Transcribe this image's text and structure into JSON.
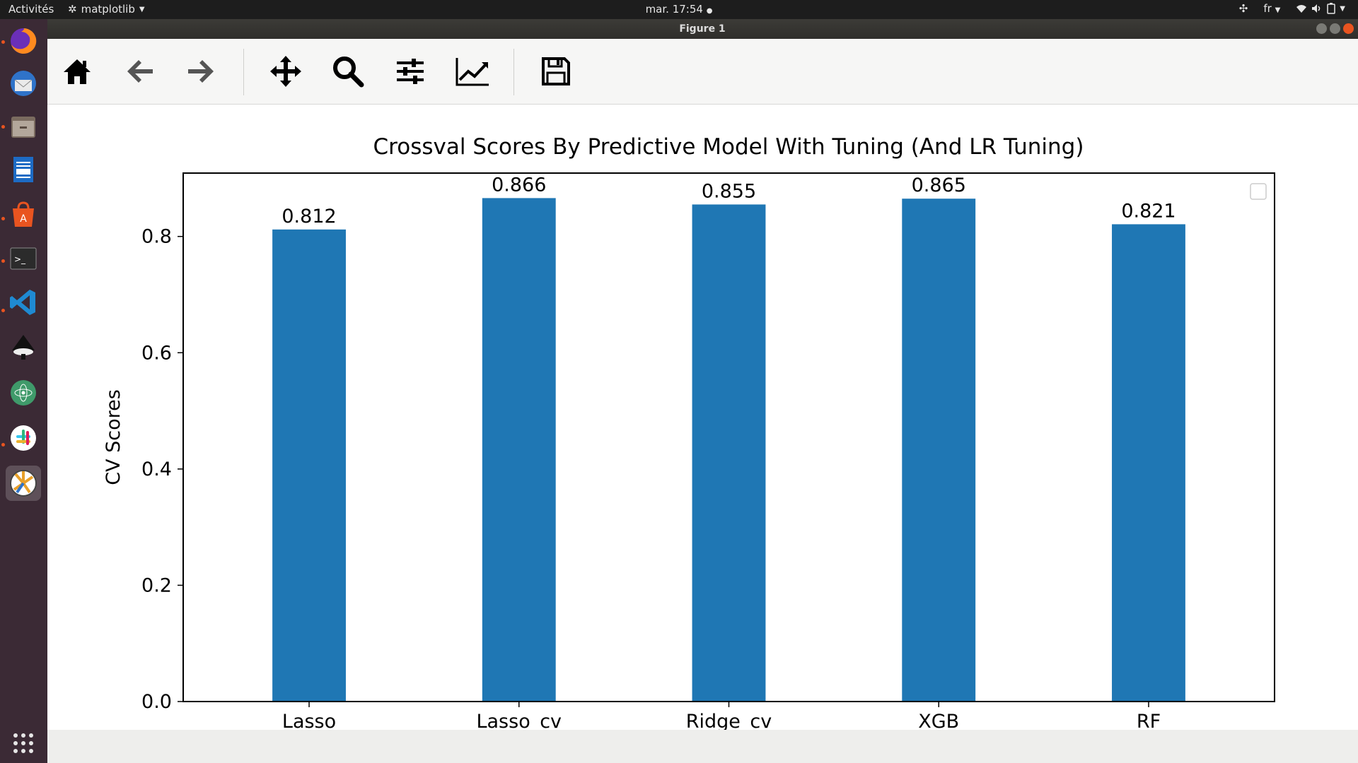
{
  "topbar": {
    "activities": "Activités",
    "app_name": "matplotlib",
    "clock": "mar. 17:54",
    "lang": "fr"
  },
  "window": {
    "title": "Figure 1"
  },
  "toolbar": {
    "buttons": [
      "home-icon",
      "back-arrow-icon",
      "forward-arrow-icon",
      "pan-move-icon",
      "zoom-magnifier-icon",
      "configure-subplots-icon",
      "edit-axis-curve-icon",
      "save-floppy-icon"
    ]
  },
  "dock": {
    "apps": [
      "firefox-icon",
      "thunderbird-icon",
      "files-icon",
      "writer-icon",
      "software-center-icon",
      "terminal-icon",
      "vscode-icon",
      "inkscape-icon",
      "atom-icon",
      "slack-icon",
      "matplotlib-figure-icon"
    ]
  },
  "chart_data": {
    "type": "bar",
    "title": "Crossval Scores By Predictive Model With Tuning (And LR Tuning)",
    "xlabel": "",
    "ylabel": "CV Scores",
    "categories": [
      "Lasso",
      "Lasso_cv",
      "Ridge_cv",
      "XGB",
      "RF"
    ],
    "values": [
      0.812,
      0.866,
      0.855,
      0.865,
      0.821
    ],
    "data_labels": [
      "0.812",
      "0.866",
      "0.855",
      "0.865",
      "0.821"
    ],
    "yticks": [
      "0.0",
      "0.2",
      "0.4",
      "0.6",
      "0.8"
    ],
    "ylim": [
      0,
      0.909
    ],
    "bar_color": "#1f77b4",
    "legend": "top-right (empty)",
    "grid": false
  }
}
